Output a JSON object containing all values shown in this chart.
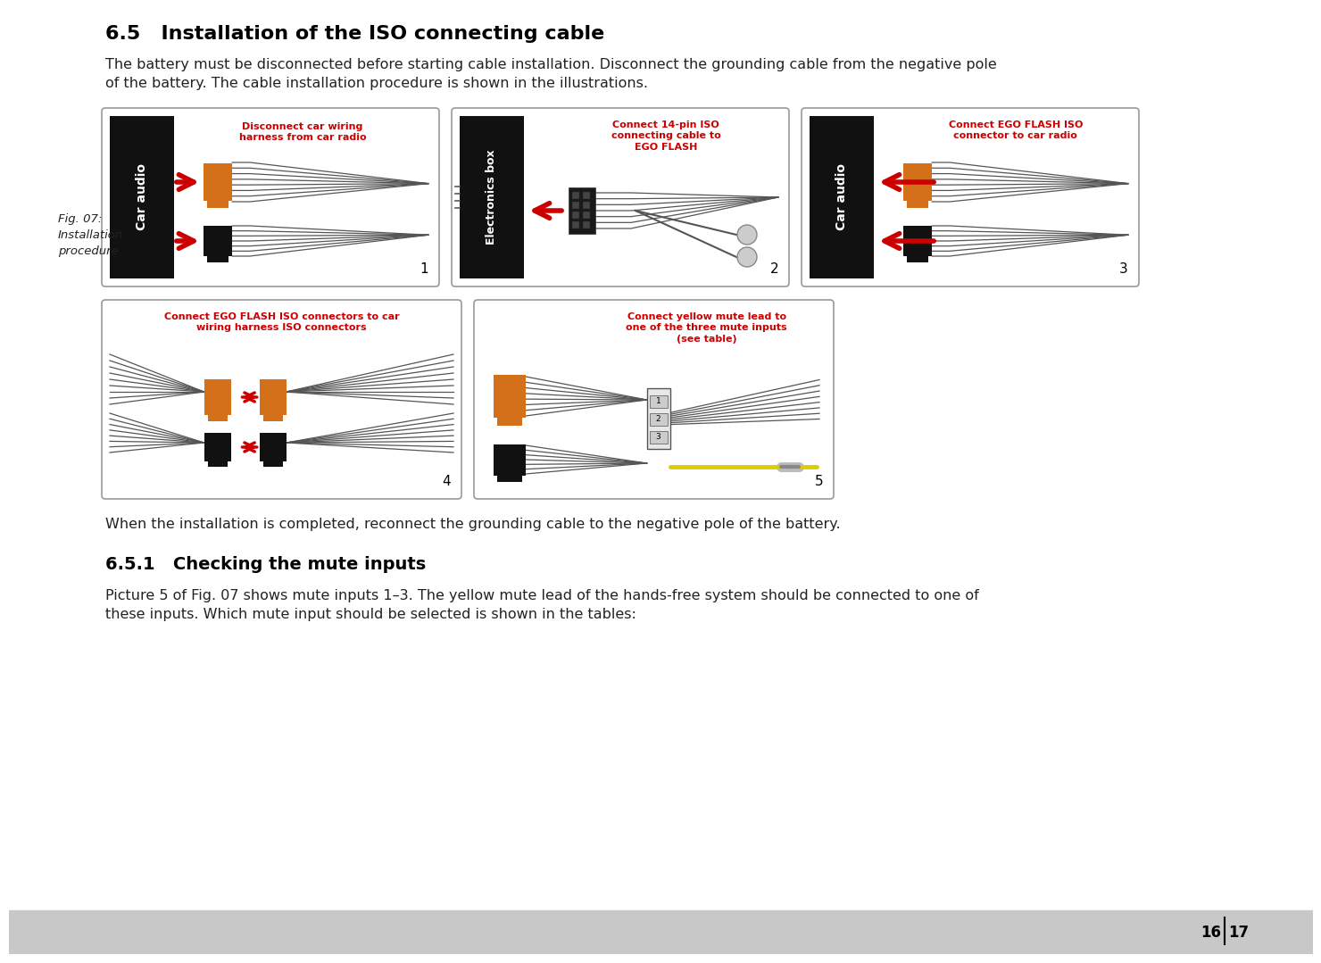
{
  "bg_color": "#ffffff",
  "page_bg_bottom": "#c8c8c8",
  "title": "6.5   Installation of the ISO connecting cable",
  "body_text1": "The battery must be disconnected before starting cable installation. Disconnect the grounding cable from the negative pole\nof the battery. The cable installation procedure is shown in the illustrations.",
  "fig_label": "Fig. 07:\nInstallation\nprocedure",
  "section_title": "6.5.1   Checking the mute inputs",
  "body_text2": "Picture 5 of Fig. 07 shows mute inputs 1–3. The yellow mute lead of the hands-free system should be connected to one of\nthese inputs. Which mute input should be selected is shown in the tables:",
  "reconnect_text": "When the installation is completed, reconnect the grounding cable to the negative pole of the battery.",
  "page_numbers": "16 | 17",
  "orange_color": "#D4701A",
  "red_color": "#CC0000",
  "black_color": "#111111",
  "caption_color": "#CC0000",
  "text_color": "#222222",
  "wire_color": "#555555",
  "diagram_border": "#999999",
  "diag1_caption": "Disconnect car wiring\nharness from car radio",
  "diag2_caption": "Connect 14-pin ISO\nconnecting cable to\nEGO FLASH",
  "diag3_caption": "Connect EGO FLASH ISO\nconnector to car radio",
  "diag4_caption": "Connect EGO FLASH ISO connectors to car\nwiring harness ISO connectors",
  "diag5_caption": "Connect yellow mute lead to\none of the three mute inputs\n(see table)"
}
